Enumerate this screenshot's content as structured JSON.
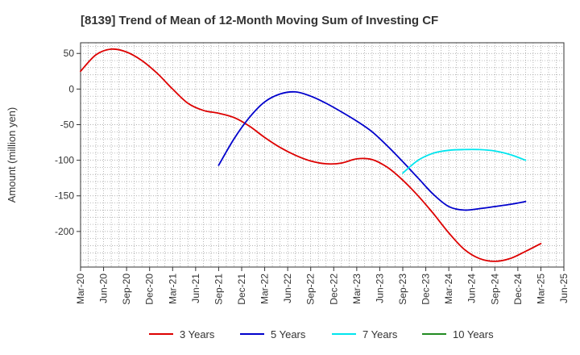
{
  "chart_data": {
    "type": "line",
    "title": "[8139]  Trend of Mean of 12-Month Moving Sum of Investing CF",
    "ylabel": "Amount (million yen)",
    "xlabel": "",
    "ylim": [
      -250,
      65
    ],
    "yticks": [
      50,
      0,
      -50,
      -100,
      -150,
      -200
    ],
    "xlim": [
      "2020-03",
      "2025-06"
    ],
    "xticks": [
      "Mar-20",
      "Jun-20",
      "Sep-20",
      "Dec-20",
      "Mar-21",
      "Jun-21",
      "Sep-21",
      "Dec-21",
      "Mar-22",
      "Jun-22",
      "Sep-22",
      "Dec-22",
      "Mar-23",
      "Jun-23",
      "Sep-23",
      "Dec-23",
      "Mar-24",
      "Jun-24",
      "Sep-24",
      "Dec-24",
      "Mar-25",
      "Jun-25"
    ],
    "grid": true,
    "legend_position": "bottom",
    "series": [
      {
        "name": "3 Years",
        "color": "#dd0000",
        "points": [
          [
            "2020-03",
            25
          ],
          [
            "2020-05",
            48
          ],
          [
            "2020-07",
            56
          ],
          [
            "2020-09",
            52
          ],
          [
            "2020-11",
            40
          ],
          [
            "2021-01",
            22
          ],
          [
            "2021-03",
            0
          ],
          [
            "2021-05",
            -20
          ],
          [
            "2021-07",
            -30
          ],
          [
            "2021-09",
            -34
          ],
          [
            "2021-11",
            -40
          ],
          [
            "2022-01",
            -52
          ],
          [
            "2022-03",
            -68
          ],
          [
            "2022-05",
            -82
          ],
          [
            "2022-07",
            -93
          ],
          [
            "2022-09",
            -101
          ],
          [
            "2022-11",
            -105
          ],
          [
            "2023-01",
            -104
          ],
          [
            "2023-03",
            -98
          ],
          [
            "2023-05",
            -99
          ],
          [
            "2023-07",
            -110
          ],
          [
            "2023-09",
            -128
          ],
          [
            "2023-11",
            -150
          ],
          [
            "2024-01",
            -175
          ],
          [
            "2024-03",
            -202
          ],
          [
            "2024-05",
            -225
          ],
          [
            "2024-07",
            -238
          ],
          [
            "2024-09",
            -242
          ],
          [
            "2024-11",
            -238
          ],
          [
            "2025-01",
            -228
          ],
          [
            "2025-03",
            -217
          ]
        ]
      },
      {
        "name": "5 Years",
        "color": "#0000cc",
        "points": [
          [
            "2021-09",
            -107
          ],
          [
            "2021-11",
            -70
          ],
          [
            "2022-01",
            -40
          ],
          [
            "2022-03",
            -18
          ],
          [
            "2022-05",
            -7
          ],
          [
            "2022-07",
            -4
          ],
          [
            "2022-09",
            -10
          ],
          [
            "2022-11",
            -20
          ],
          [
            "2023-01",
            -32
          ],
          [
            "2023-03",
            -45
          ],
          [
            "2023-05",
            -60
          ],
          [
            "2023-07",
            -80
          ],
          [
            "2023-09",
            -102
          ],
          [
            "2023-11",
            -125
          ],
          [
            "2024-01",
            -148
          ],
          [
            "2024-03",
            -165
          ],
          [
            "2024-05",
            -170
          ],
          [
            "2024-07",
            -168
          ],
          [
            "2024-09",
            -165
          ],
          [
            "2024-11",
            -162
          ],
          [
            "2025-01",
            -158
          ]
        ]
      },
      {
        "name": "7 Years",
        "color": "#00e5ee",
        "points": [
          [
            "2023-09",
            -118
          ],
          [
            "2023-11",
            -100
          ],
          [
            "2024-01",
            -90
          ],
          [
            "2024-03",
            -86
          ],
          [
            "2024-05",
            -85
          ],
          [
            "2024-07",
            -85
          ],
          [
            "2024-09",
            -87
          ],
          [
            "2024-11",
            -92
          ],
          [
            "2025-01",
            -100
          ]
        ]
      },
      {
        "name": "10 Years",
        "color": "#228b22",
        "points": []
      }
    ]
  }
}
